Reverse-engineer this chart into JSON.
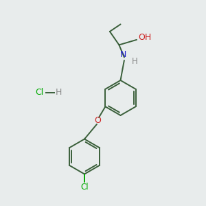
{
  "background_color": "#e8ecec",
  "bond_color": "#3a5f3a",
  "N_color": "#2222cc",
  "O_color": "#cc2222",
  "Cl_color": "#00aa00",
  "H_color": "#888888",
  "figsize": [
    3.0,
    3.0
  ],
  "dpi": 100,
  "xlim": [
    0,
    10
  ],
  "ylim": [
    0,
    10
  ]
}
